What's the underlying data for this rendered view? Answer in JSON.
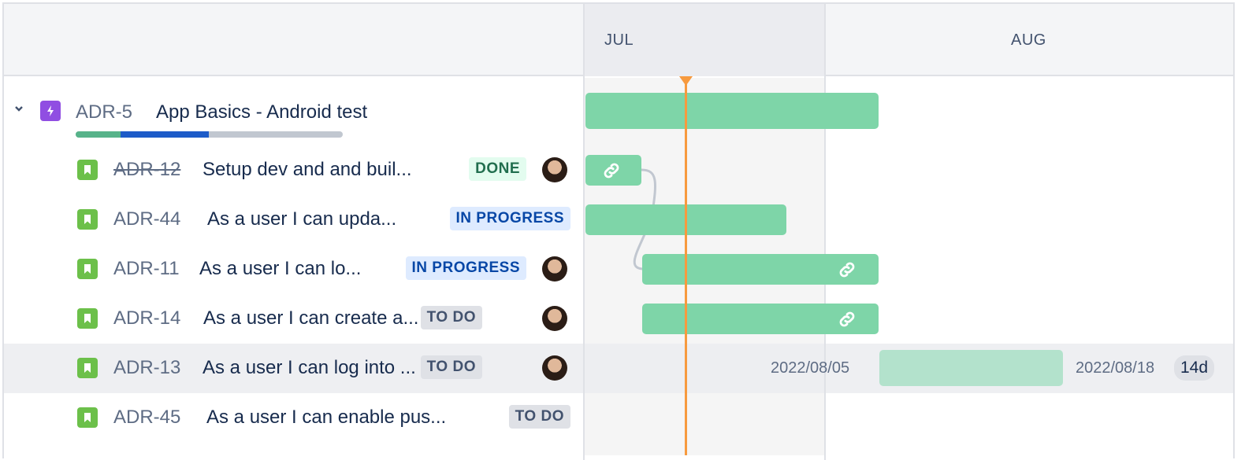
{
  "timeline": {
    "months": [
      "JUL",
      "AUG"
    ]
  },
  "epic": {
    "key": "ADR-5",
    "summary": "App Basics - Android test",
    "progress": {
      "done": 0.17,
      "in_progress": 0.33,
      "todo": 0.5
    }
  },
  "issues": [
    {
      "key": "ADR-12",
      "summary": "Setup dev and and buil...",
      "status": "DONE",
      "strikethrough": true,
      "has_avatar": true
    },
    {
      "key": "ADR-44",
      "summary": "As a user I can upda...",
      "status": "IN PROGRESS",
      "has_avatar": false
    },
    {
      "key": "ADR-11",
      "summary": "As a user I can lo...",
      "status": "IN PROGRESS",
      "has_avatar": true
    },
    {
      "key": "ADR-14",
      "summary": "As a user I can create a...",
      "status": "TO DO",
      "has_avatar": true
    },
    {
      "key": "ADR-13",
      "summary": "As a user I can log into ...",
      "status": "TO DO",
      "has_avatar": true,
      "start": "2022/08/05",
      "end": "2022/08/18",
      "duration": "14d"
    },
    {
      "key": "ADR-45",
      "summary": "As a user I can enable pus...",
      "status": "TO DO",
      "has_avatar": false
    }
  ],
  "colors": {
    "bar": "#7ed5a8",
    "today": "#f79a3e",
    "epic": "#904ee2",
    "story": "#6cc04a"
  }
}
